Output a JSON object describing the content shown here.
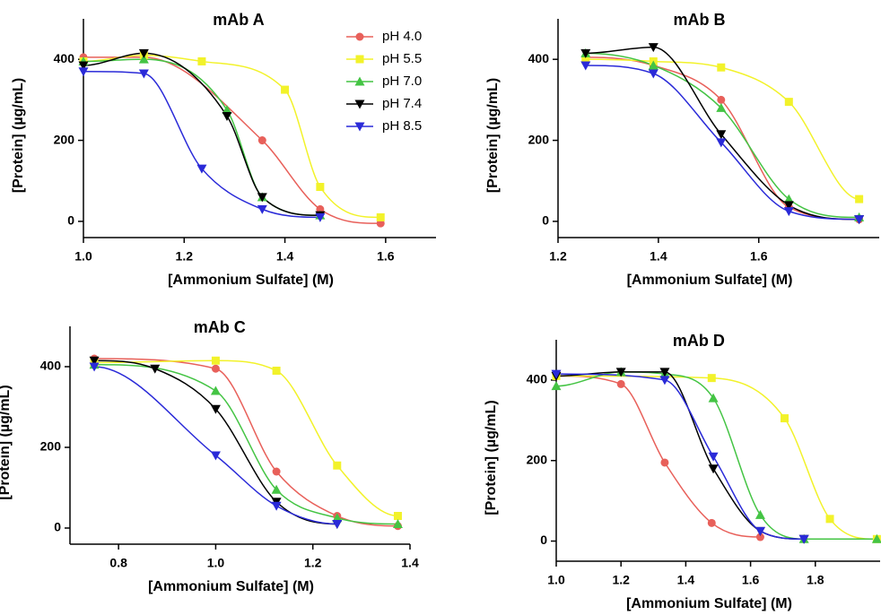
{
  "chart_data": [
    {
      "type": "line",
      "title": "mAb A",
      "x_label": "[Ammonium Sulfate] (M)",
      "y_label": "[Protein] (µg/mL)",
      "xlim": [
        1.0,
        1.7
      ],
      "ylim": [
        -40,
        500
      ],
      "xticks": [
        {
          "value": 1.0,
          "label": "1.0"
        },
        1.2,
        1.4,
        1.6
      ],
      "yticks": [
        0,
        200,
        400
      ],
      "legend": "upper-right",
      "series": [
        {
          "name": "pH 4.0",
          "color": "#e8605a",
          "marker": "circle",
          "x": [
            1.0,
            1.12,
            1.355,
            1.47,
            1.59
          ],
          "values": [
            405,
            405,
            200,
            30,
            -5
          ]
        },
        {
          "name": "pH 5.5",
          "color": "#f2f22a",
          "marker": "square",
          "x": [
            1.0,
            1.12,
            1.235,
            1.4,
            1.47,
            1.59
          ],
          "values": [
            395,
            410,
            395,
            325,
            85,
            10
          ]
        },
        {
          "name": "pH 7.0",
          "color": "#44c444",
          "marker": "triangle-up",
          "x": [
            1.0,
            1.12,
            1.285,
            1.355,
            1.47
          ],
          "values": [
            395,
            400,
            275,
            60,
            15
          ]
        },
        {
          "name": "pH 7.4",
          "color": "#000000",
          "marker": "triangle-down",
          "x": [
            1.0,
            1.12,
            1.285,
            1.355,
            1.47
          ],
          "values": [
            385,
            415,
            260,
            60,
            15
          ]
        },
        {
          "name": "pH 8.5",
          "color": "#2a2ad8",
          "marker": "triangle-down",
          "x": [
            1.0,
            1.12,
            1.235,
            1.355,
            1.47
          ],
          "values": [
            370,
            365,
            130,
            30,
            10
          ]
        }
      ]
    },
    {
      "type": "line",
      "title": "mAb B",
      "x_label": "[Ammonium Sulfate] (M)",
      "y_label": "[Protein] (µg/mL)",
      "xlim": [
        1.2,
        1.84
      ],
      "ylim": [
        -40,
        500
      ],
      "xticks": [
        1.2,
        1.4,
        1.6
      ],
      "yticks": [
        0,
        200,
        400
      ],
      "series": [
        {
          "color": "#e8605a",
          "marker": "circle",
          "x": [
            1.255,
            1.39,
            1.525,
            1.66,
            1.8
          ],
          "values": [
            405,
            385,
            300,
            35,
            5
          ]
        },
        {
          "color": "#f2f22a",
          "marker": "square",
          "x": [
            1.255,
            1.39,
            1.525,
            1.66,
            1.8
          ],
          "values": [
            400,
            395,
            380,
            295,
            55
          ]
        },
        {
          "color": "#44c444",
          "marker": "triangle-up",
          "x": [
            1.255,
            1.39,
            1.525,
            1.66,
            1.8
          ],
          "values": [
            415,
            385,
            280,
            55,
            10
          ]
        },
        {
          "color": "#000000",
          "marker": "triangle-down",
          "x": [
            1.255,
            1.39,
            1.525,
            1.66,
            1.8
          ],
          "values": [
            415,
            430,
            215,
            40,
            5
          ]
        },
        {
          "color": "#2a2ad8",
          "marker": "triangle-down",
          "x": [
            1.255,
            1.39,
            1.525,
            1.66,
            1.8
          ],
          "values": [
            385,
            365,
            195,
            25,
            5
          ]
        }
      ]
    },
    {
      "type": "line",
      "title": "mAb C",
      "x_label": "[Ammonium Sulfate] (M)",
      "y_label": "[Protein] (µg/mL)",
      "xlim": [
        0.7,
        1.4
      ],
      "ylim": [
        -40,
        500
      ],
      "xticks": [
        0.8,
        {
          "value": 1.0,
          "label": "1.0"
        },
        1.2,
        1.4
      ],
      "yticks": [
        0,
        200,
        400
      ],
      "series": [
        {
          "color": "#e8605a",
          "marker": "circle",
          "x": [
            0.75,
            1.0,
            1.125,
            1.25,
            1.375
          ],
          "values": [
            420,
            395,
            140,
            30,
            5
          ]
        },
        {
          "color": "#f2f22a",
          "marker": "square",
          "x": [
            0.75,
            1.0,
            1.125,
            1.25,
            1.375
          ],
          "values": [
            410,
            415,
            390,
            155,
            30
          ]
        },
        {
          "color": "#44c444",
          "marker": "triangle-up",
          "x": [
            0.75,
            1.0,
            1.125,
            1.25,
            1.375
          ],
          "values": [
            405,
            340,
            95,
            25,
            10
          ]
        },
        {
          "color": "#000000",
          "marker": "triangle-down",
          "x": [
            0.75,
            0.875,
            1.0,
            1.125,
            1.25
          ],
          "values": [
            415,
            395,
            295,
            65,
            10
          ]
        },
        {
          "color": "#2a2ad8",
          "marker": "triangle-down",
          "x": [
            0.75,
            1.0,
            1.125,
            1.25
          ],
          "values": [
            400,
            180,
            55,
            10
          ]
        }
      ]
    },
    {
      "type": "line",
      "title": "mAb D",
      "x_label": "[Ammonium Sulfate] (M)",
      "y_label": "[Protein] (µg/mL)",
      "xlim": [
        1.0,
        2.0
      ],
      "ylim": [
        -50,
        500
      ],
      "xticks": [
        {
          "value": 1.0,
          "label": "1.0"
        },
        1.2,
        1.4,
        1.6,
        1.8
      ],
      "yticks": [
        0,
        200,
        400
      ],
      "series": [
        {
          "color": "#e8605a",
          "marker": "circle",
          "x": [
            1.0,
            1.2,
            1.335,
            1.48,
            1.63
          ],
          "values": [
            410,
            390,
            195,
            45,
            10
          ]
        },
        {
          "color": "#f2f22a",
          "marker": "square",
          "x": [
            1.0,
            1.48,
            1.705,
            1.845,
            1.99
          ],
          "values": [
            410,
            405,
            305,
            55,
            5
          ]
        },
        {
          "color": "#44c444",
          "marker": "triangle-up",
          "x": [
            1.0,
            1.2,
            1.335,
            1.485,
            1.63,
            1.765,
            1.99
          ],
          "values": [
            385,
            420,
            415,
            355,
            65,
            5,
            5
          ]
        },
        {
          "color": "#000000",
          "marker": "triangle-down",
          "x": [
            1.0,
            1.2,
            1.335,
            1.485,
            1.63,
            1.765
          ],
          "values": [
            410,
            420,
            420,
            180,
            25,
            5
          ]
        },
        {
          "color": "#2a2ad8",
          "marker": "triangle-down",
          "x": [
            1.0,
            1.335,
            1.485,
            1.63,
            1.765
          ],
          "values": [
            415,
            400,
            210,
            25,
            5
          ]
        }
      ]
    }
  ]
}
